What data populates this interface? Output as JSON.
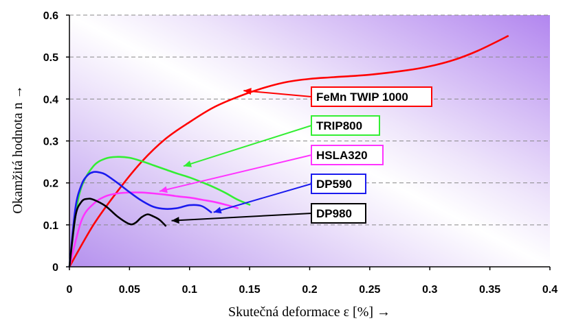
{
  "chart_data": {
    "type": "line",
    "title": "",
    "xlabel": "Skutečná deformace ε [%] →",
    "ylabel": "Okamžitá hodnota n →",
    "xlim": [
      0,
      0.4
    ],
    "ylim": [
      0,
      0.6
    ],
    "x_ticks": [
      0,
      0.05,
      0.1,
      0.15,
      0.2,
      0.25,
      0.3,
      0.35,
      0.4
    ],
    "x_tick_labels": [
      "0",
      "0.05",
      "0.1",
      "0.15",
      "0.2",
      "0.25",
      "0.3",
      "0.35",
      "0.4"
    ],
    "y_ticks": [
      0,
      0.1,
      0.2,
      0.3,
      0.4,
      0.5,
      0.6
    ],
    "y_tick_labels": [
      "0",
      "0.1",
      "0.2",
      "0.3",
      "0.4",
      "0.5",
      "0.6"
    ],
    "grid": "horizontal dashed",
    "series": [
      {
        "name": "FeMn TWIP 1000",
        "color": "#ff0000",
        "x": [
          0,
          0.02,
          0.04,
          0.06,
          0.08,
          0.1,
          0.12,
          0.14,
          0.16,
          0.18,
          0.2,
          0.22,
          0.25,
          0.28,
          0.3,
          0.32,
          0.34,
          0.365
        ],
        "y": [
          0,
          0.1,
          0.18,
          0.25,
          0.305,
          0.345,
          0.38,
          0.405,
          0.425,
          0.44,
          0.448,
          0.452,
          0.458,
          0.468,
          0.478,
          0.493,
          0.515,
          0.55
        ],
        "arrow_to": [
          0.145,
          0.42
        ]
      },
      {
        "name": "TRIP800",
        "color": "#33ee33",
        "x": [
          0,
          0.005,
          0.01,
          0.02,
          0.03,
          0.04,
          0.05,
          0.06,
          0.07,
          0.08,
          0.09,
          0.1,
          0.11,
          0.12,
          0.13,
          0.14,
          0.15
        ],
        "y": [
          0,
          0.12,
          0.19,
          0.24,
          0.258,
          0.262,
          0.26,
          0.252,
          0.242,
          0.232,
          0.222,
          0.213,
          0.202,
          0.19,
          0.176,
          0.16,
          0.148
        ],
        "arrow_to": [
          0.095,
          0.24
        ]
      },
      {
        "name": "HSLA320",
        "color": "#ff33ff",
        "x": [
          0,
          0.01,
          0.02,
          0.03,
          0.04,
          0.05,
          0.06,
          0.07,
          0.08,
          0.09,
          0.1,
          0.11,
          0.12,
          0.13,
          0.14
        ],
        "y": [
          0,
          0.11,
          0.15,
          0.168,
          0.175,
          0.177,
          0.177,
          0.175,
          0.172,
          0.168,
          0.165,
          0.16,
          0.155,
          0.148,
          0.14
        ],
        "arrow_to": [
          0.075,
          0.18
        ]
      },
      {
        "name": "DP590",
        "color": "#1a1aee",
        "x": [
          0,
          0.005,
          0.01,
          0.015,
          0.02,
          0.025,
          0.03,
          0.04,
          0.05,
          0.06,
          0.07,
          0.08,
          0.09,
          0.1,
          0.11,
          0.118
        ],
        "y": [
          0,
          0.14,
          0.195,
          0.218,
          0.226,
          0.225,
          0.22,
          0.2,
          0.178,
          0.158,
          0.143,
          0.138,
          0.14,
          0.147,
          0.145,
          0.13
        ],
        "arrow_to": [
          0.12,
          0.13
        ]
      },
      {
        "name": "DP980",
        "color": "#000000",
        "x": [
          0,
          0.005,
          0.01,
          0.015,
          0.02,
          0.03,
          0.04,
          0.05,
          0.055,
          0.06,
          0.065,
          0.07,
          0.075,
          0.08
        ],
        "y": [
          0,
          0.12,
          0.155,
          0.162,
          0.16,
          0.145,
          0.12,
          0.102,
          0.105,
          0.118,
          0.125,
          0.12,
          0.112,
          0.098
        ],
        "arrow_to": [
          0.085,
          0.11
        ]
      }
    ]
  }
}
